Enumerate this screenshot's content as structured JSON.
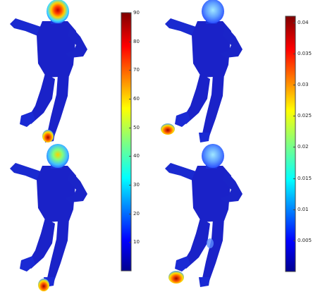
{
  "figure": {
    "panels": [
      {
        "id": "top-left",
        "colorbar": "left",
        "hotspots": [
          "head-high",
          "right-foot-high"
        ]
      },
      {
        "id": "top-right",
        "colorbar": "right",
        "hotspots": [
          "head-light",
          "left-foot-high"
        ]
      },
      {
        "id": "bottom-left",
        "colorbar": "left",
        "hotspots": [
          "head-medium",
          "right-foot-high"
        ]
      },
      {
        "id": "bottom-right",
        "colorbar": "right",
        "hotspots": [
          "head-light",
          "left-foot-high",
          "knee-light"
        ]
      }
    ],
    "colorbars": {
      "left": {
        "min": 0,
        "max": 90,
        "ticks": [
          "90",
          "80",
          "70",
          "60",
          "50",
          "40",
          "30",
          "20",
          "10"
        ]
      },
      "right": {
        "min": 0,
        "max": 0.041,
        "ticks": [
          "0.04",
          "0.035",
          "0.03",
          "0.025",
          "0.02",
          "0.015",
          "0.01",
          "0.005"
        ]
      }
    },
    "colormap": "jet",
    "colors": {
      "body": "#1a1acc",
      "cold": "#0000a0",
      "hot": "#b00000"
    }
  }
}
